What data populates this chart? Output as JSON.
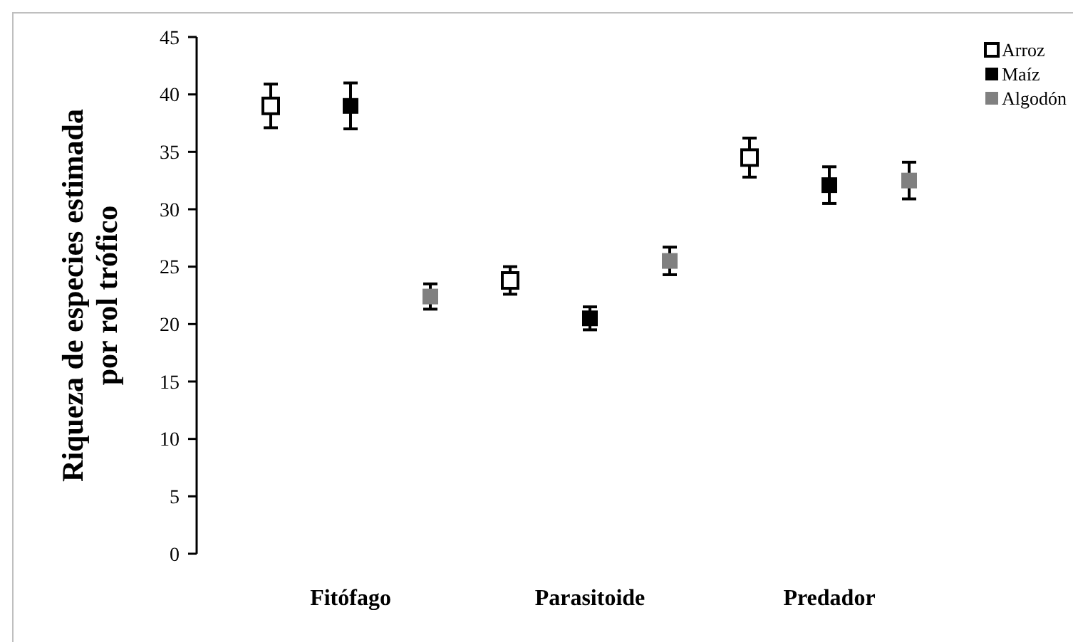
{
  "chart_data": {
    "type": "scatter",
    "ylabel": "Riqueza de especies estimada\npor rol trófico",
    "categories": [
      "Fitófago",
      "Parasitoide",
      "Predador"
    ],
    "ylim": [
      0,
      45
    ],
    "yticks": [
      0,
      5,
      10,
      15,
      20,
      25,
      30,
      35,
      40,
      45
    ],
    "marker": "square",
    "legend": "top right",
    "grid": false,
    "series": [
      {
        "name": "Arroz",
        "color": "#ffffff",
        "values": [
          39.0,
          23.8,
          34.5
        ],
        "errors": [
          1.9,
          1.2,
          1.7
        ]
      },
      {
        "name": "Maíz",
        "color": "#000000",
        "values": [
          39.0,
          20.5,
          32.1
        ],
        "errors": [
          2.0,
          1.0,
          1.6
        ]
      },
      {
        "name": "Algodón",
        "color": "#808080",
        "values": [
          22.4,
          25.5,
          32.5
        ],
        "errors": [
          1.1,
          1.2,
          1.6
        ]
      }
    ]
  }
}
